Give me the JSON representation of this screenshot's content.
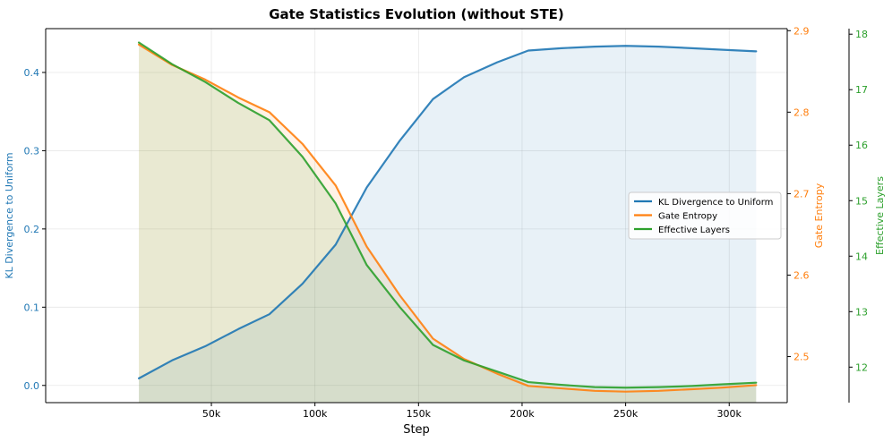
{
  "chart_data": {
    "type": "line",
    "title": "Gate Statistics Evolution (without STE)",
    "xlabel": "Step",
    "x": [
      15000,
      31000,
      47000,
      63000,
      78000,
      94000,
      110000,
      125000,
      141000,
      157000,
      172000,
      188000,
      203000,
      219000,
      235000,
      250000,
      266000,
      282000,
      297000,
      313000
    ],
    "xlim": [
      -30000,
      328000
    ],
    "xticks": [
      50000,
      100000,
      150000,
      200000,
      250000,
      300000
    ],
    "xtick_labels": [
      "50k",
      "100k",
      "150k",
      "200k",
      "250k",
      "300k"
    ],
    "grid": true,
    "legend_position": "center-right",
    "axes": [
      {
        "id": "kl",
        "label": "KL Divergence to Uniform",
        "side": "left",
        "color": "#1f77b4",
        "ylim": [
          -0.022,
          0.456
        ],
        "ticks": [
          0.0,
          0.1,
          0.2,
          0.3,
          0.4
        ],
        "tick_labels": [
          "0.0",
          "0.1",
          "0.2",
          "0.3",
          "0.4"
        ]
      },
      {
        "id": "entropy",
        "label": "Gate Entropy",
        "side": "right",
        "color": "#ff7f0e",
        "ylim": [
          2.4435,
          2.9025
        ],
        "ticks": [
          2.5,
          2.6,
          2.7,
          2.8,
          2.9
        ],
        "tick_labels": [
          "2.5",
          "2.6",
          "2.7",
          "2.8",
          "2.9"
        ]
      },
      {
        "id": "layers",
        "label": "Effective Layers",
        "side": "right-outer",
        "color": "#2ca02c",
        "ylim": [
          11.36,
          18.1
        ],
        "ticks": [
          12,
          13,
          14,
          15,
          16,
          17,
          18
        ],
        "tick_labels": [
          "12",
          "13",
          "14",
          "15",
          "16",
          "17",
          "18"
        ]
      }
    ],
    "series": [
      {
        "name": "KL Divergence to Uniform",
        "axis": "kl",
        "color": "#1f77b4",
        "values": [
          0.009,
          0.032,
          0.05,
          0.072,
          0.091,
          0.13,
          0.18,
          0.253,
          0.313,
          0.366,
          0.394,
          0.413,
          0.428,
          0.431,
          0.433,
          0.434,
          0.433,
          0.431,
          0.429,
          0.427
        ]
      },
      {
        "name": "Gate Entropy",
        "axis": "entropy",
        "color": "#ff7f0e",
        "values": [
          2.883,
          2.858,
          2.84,
          2.818,
          2.8,
          2.761,
          2.71,
          2.635,
          2.575,
          2.522,
          2.497,
          2.479,
          2.464,
          2.461,
          2.458,
          2.457,
          2.458,
          2.46,
          2.462,
          2.465
        ]
      },
      {
        "name": "Effective Layers",
        "axis": "layers",
        "color": "#2ca02c",
        "values": [
          17.85,
          17.46,
          17.14,
          16.76,
          16.45,
          15.79,
          14.95,
          13.84,
          13.08,
          12.4,
          12.12,
          11.92,
          11.73,
          11.68,
          11.64,
          11.63,
          11.64,
          11.66,
          11.69,
          11.72
        ]
      }
    ]
  }
}
